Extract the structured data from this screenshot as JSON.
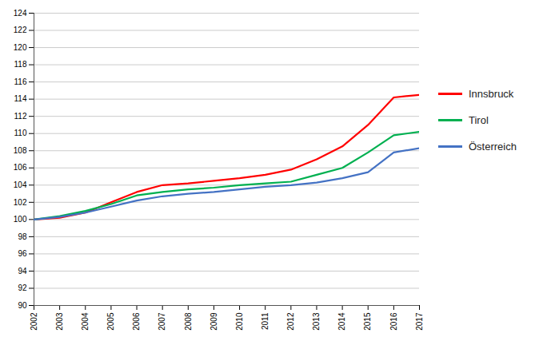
{
  "chart_data": {
    "type": "line",
    "x": [
      2002,
      2003,
      2004,
      2005,
      2006,
      2007,
      2008,
      2009,
      2010,
      2011,
      2012,
      2013,
      2014,
      2015,
      2016,
      2017
    ],
    "series": [
      {
        "name": "Innsbruck",
        "color": "#FF0000",
        "values": [
          100.0,
          100.2,
          100.8,
          102.0,
          103.2,
          104.0,
          104.2,
          104.5,
          104.8,
          105.2,
          105.8,
          107.0,
          108.5,
          111.0,
          114.2,
          114.5
        ]
      },
      {
        "name": "Tirol",
        "color": "#00B050",
        "values": [
          100.0,
          100.4,
          101.0,
          101.8,
          102.8,
          103.2,
          103.5,
          103.7,
          104.0,
          104.2,
          104.4,
          105.2,
          106.0,
          107.8,
          109.8,
          110.2
        ]
      },
      {
        "name": "Österreich",
        "color": "#4472C4",
        "values": [
          100.0,
          100.3,
          100.8,
          101.5,
          102.2,
          102.7,
          103.0,
          103.2,
          103.5,
          103.8,
          104.0,
          104.3,
          104.8,
          105.5,
          107.8,
          108.3
        ]
      }
    ],
    "xlim": [
      2002,
      2017
    ],
    "xticks": [
      2002,
      2003,
      2004,
      2005,
      2006,
      2007,
      2008,
      2009,
      2010,
      2011,
      2012,
      2013,
      2014,
      2015,
      2016,
      2017
    ],
    "ylim": [
      90,
      124
    ],
    "yticks": [
      90,
      92,
      94,
      96,
      98,
      100,
      102,
      104,
      106,
      108,
      110,
      112,
      114,
      116,
      118,
      120,
      122,
      124
    ],
    "grid": true,
    "legend": "right"
  }
}
